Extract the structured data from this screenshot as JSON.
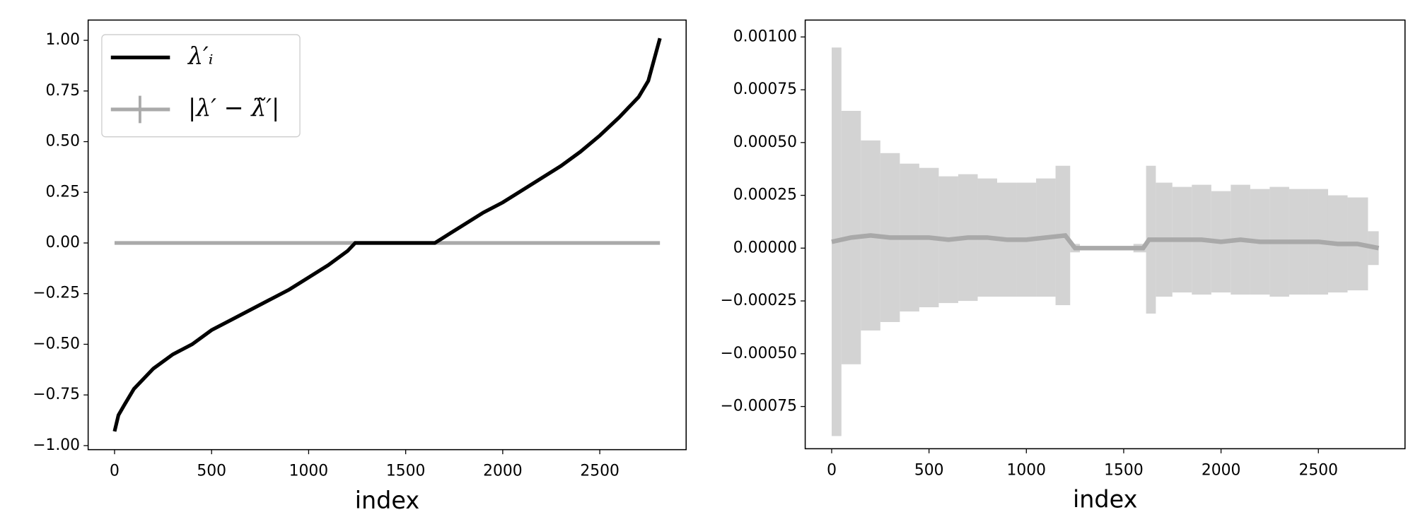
{
  "chart_data": [
    {
      "type": "line",
      "xlabel": "index",
      "x": [
        0,
        20,
        50,
        100,
        200,
        300,
        400,
        500,
        600,
        700,
        800,
        900,
        1000,
        1100,
        1200,
        1240,
        1300,
        1400,
        1500,
        1600,
        1650,
        1700,
        1800,
        1900,
        2000,
        2100,
        2200,
        2300,
        2400,
        2500,
        2600,
        2700,
        2750,
        2810
      ],
      "series": [
        {
          "name": "λ′ᵢ",
          "color": "#000000",
          "values": [
            -0.93,
            -0.85,
            -0.8,
            -0.72,
            -0.62,
            -0.55,
            -0.5,
            -0.43,
            -0.38,
            -0.33,
            -0.28,
            -0.23,
            -0.17,
            -0.11,
            -0.04,
            0,
            0,
            0,
            0,
            0,
            0,
            0.03,
            0.09,
            0.15,
            0.2,
            0.26,
            0.32,
            0.38,
            0.45,
            0.53,
            0.62,
            0.72,
            0.8,
            1.01
          ]
        },
        {
          "name": "|λ′ − λ̃′|",
          "color": "#aaaaaa",
          "values": [
            0,
            0,
            0,
            0,
            0,
            0,
            0,
            0,
            0,
            0,
            0,
            0,
            0,
            0,
            0,
            0,
            0,
            0,
            0,
            0,
            0,
            0,
            0,
            0,
            0,
            0,
            0,
            0,
            0,
            0,
            0,
            0,
            0,
            0
          ]
        }
      ],
      "xlim": [
        -136,
        2945
      ],
      "ylim": [
        -1.02,
        1.1
      ],
      "xticks": [
        0,
        500,
        1000,
        1500,
        2000,
        2500
      ],
      "yticks": [
        {
          "value": -1,
          "label": "−1.00"
        },
        {
          "value": -0.75,
          "label": "−0.75"
        },
        {
          "value": -0.5,
          "label": "−0.50"
        },
        {
          "value": -0.25,
          "label": "−0.25"
        },
        {
          "value": 0,
          "label": "0.00"
        },
        {
          "value": 0.25,
          "label": "0.25"
        },
        {
          "value": 0.5,
          "label": "0.50"
        },
        {
          "value": 0.75,
          "label": "0.75"
        },
        {
          "value": 1,
          "label": "1.00"
        }
      ],
      "legend": "upper left"
    },
    {
      "type": "errorbar",
      "xlabel": "index",
      "x": [
        0,
        100,
        200,
        300,
        400,
        500,
        600,
        700,
        800,
        900,
        1000,
        1100,
        1200,
        1250,
        1300,
        1400,
        1500,
        1600,
        1630,
        1700,
        1800,
        1900,
        2000,
        2100,
        2200,
        2300,
        2400,
        2500,
        2600,
        2700,
        2810
      ],
      "series": [
        {
          "color": "#a9a9a9",
          "error_color": "#d3d3d3",
          "values": [
            3e-05,
            5e-05,
            6e-05,
            5e-05,
            5e-05,
            5e-05,
            4e-05,
            5e-05,
            5e-05,
            4e-05,
            4e-05,
            5e-05,
            6e-05,
            0,
            0,
            0,
            0,
            0,
            4e-05,
            4e-05,
            4e-05,
            4e-05,
            3e-05,
            4e-05,
            3e-05,
            3e-05,
            3e-05,
            3e-05,
            2e-05,
            2e-05,
            0
          ],
          "errors": [
            0.00092,
            0.0006,
            0.00045,
            0.0004,
            0.00035,
            0.00033,
            0.0003,
            0.0003,
            0.00028,
            0.00027,
            0.00027,
            0.00028,
            0.00033,
            2e-05,
            1e-05,
            1e-05,
            1e-05,
            2e-05,
            0.00035,
            0.00027,
            0.00025,
            0.00026,
            0.00024,
            0.00026,
            0.00025,
            0.00026,
            0.00025,
            0.00025,
            0.00023,
            0.00022,
            8e-05
          ]
        }
      ],
      "xlim": [
        -136,
        2945
      ],
      "ylim": [
        -0.00095,
        0.00108
      ],
      "xticks": [
        0,
        500,
        1000,
        1500,
        2000,
        2500
      ],
      "yticks": [
        {
          "value": -0.00075,
          "label": "−0.00075"
        },
        {
          "value": -0.0005,
          "label": "−0.00050"
        },
        {
          "value": -0.00025,
          "label": "−0.00025"
        },
        {
          "value": 0,
          "label": "0.00000"
        },
        {
          "value": 0.00025,
          "label": "0.00025"
        },
        {
          "value": 0.0005,
          "label": "0.00050"
        },
        {
          "value": 0.00075,
          "label": "0.00075"
        },
        {
          "value": 0.001,
          "label": "0.00100"
        }
      ]
    }
  ]
}
